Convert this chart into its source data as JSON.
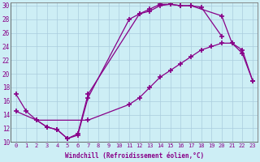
{
  "xlabel": "Windchill (Refroidissement éolien,°C)",
  "ylabel": "",
  "background_color": "#cdeef5",
  "line_color": "#880088",
  "xlim": [
    -0.5,
    23.5
  ],
  "ylim": [
    10,
    30.5
  ],
  "xticks": [
    0,
    1,
    2,
    3,
    4,
    5,
    6,
    7,
    8,
    9,
    10,
    11,
    12,
    13,
    14,
    15,
    16,
    17,
    18,
    19,
    20,
    21,
    22,
    23
  ],
  "yticks": [
    10,
    12,
    14,
    16,
    18,
    20,
    22,
    24,
    26,
    28,
    30
  ],
  "line1_x": [
    0,
    1,
    2,
    3,
    4,
    5,
    6,
    7,
    11,
    12,
    13,
    14,
    15,
    16,
    17,
    18,
    20
  ],
  "line1_y": [
    17,
    14.5,
    13.2,
    12.2,
    11.8,
    10.5,
    11.0,
    16.5,
    28.0,
    28.8,
    29.2,
    30.0,
    30.2,
    30.0,
    30.0,
    29.8,
    25.5
  ],
  "line2_x": [
    2,
    3,
    4,
    5,
    6,
    7,
    12,
    13,
    14,
    15,
    16,
    17,
    20,
    21,
    22,
    23
  ],
  "line2_y": [
    13.2,
    12.2,
    11.8,
    10.5,
    11.2,
    17.0,
    28.8,
    29.5,
    30.2,
    30.2,
    30.0,
    30.0,
    28.5,
    24.5,
    23.0,
    19.0
  ],
  "line3_x": [
    0,
    2,
    7,
    11,
    12,
    13,
    14,
    15,
    16,
    17,
    18,
    19,
    20,
    21,
    22,
    23
  ],
  "line3_y": [
    14.5,
    13.2,
    13.2,
    15.5,
    16.5,
    18.0,
    19.5,
    20.5,
    21.5,
    22.5,
    23.5,
    24.0,
    24.5,
    24.5,
    23.5,
    19.0
  ]
}
